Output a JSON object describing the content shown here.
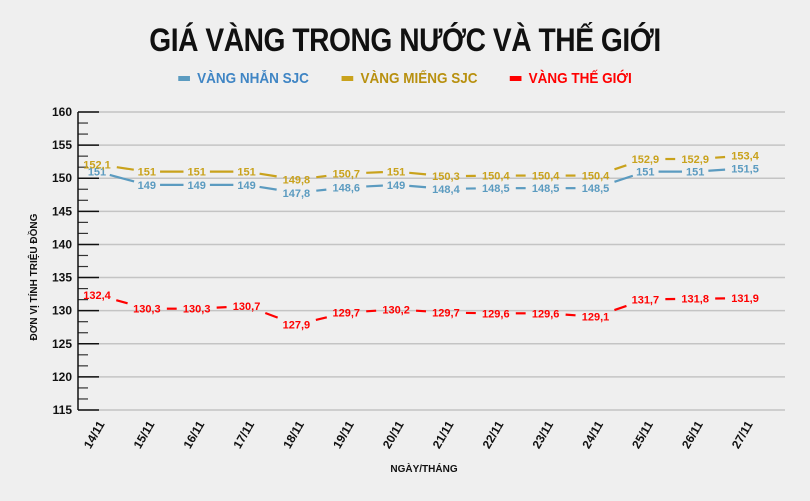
{
  "title": "GIÁ VÀNG TRONG NƯỚC VÀ THẾ GIỚI",
  "legend": [
    {
      "label": "VÀNG NHẪN SJC",
      "color": "#5b9bc0",
      "text_color": "#3f85c4"
    },
    {
      "label": "VÀNG MIẾNG SJC",
      "color": "#c9a21c",
      "text_color": "#b8900f"
    },
    {
      "label": "VÀNG THẾ GIỚI",
      "color": "#ff0000",
      "text_color": "#ff0000"
    }
  ],
  "chart_data": {
    "type": "line",
    "title": "GIÁ VÀNG TRONG NƯỚC VÀ THẾ GIỚI",
    "xlabel": "NGÀY/THÁNG",
    "ylabel": "ĐƠN VỊ TÍNH TRIỆU ĐỒNG",
    "ylim": [
      115,
      160
    ],
    "yticks": [
      115,
      120,
      125,
      130,
      135,
      140,
      145,
      150,
      155,
      160
    ],
    "grid": true,
    "legend_position": "top",
    "categories": [
      "14/11",
      "15/11",
      "16/11",
      "17/11",
      "18/11",
      "19/11",
      "20/11",
      "21/11",
      "22/11",
      "23/11",
      "24/11",
      "25/11",
      "26/11",
      "27/11"
    ],
    "series": [
      {
        "name": "VÀNG NHẪN SJC",
        "color": "#5b9bc0",
        "values": [
          151,
          149,
          149,
          149,
          147.8,
          148.6,
          149,
          148.4,
          148.5,
          148.5,
          148.5,
          151,
          151,
          151.5
        ],
        "labels": [
          "151",
          "149",
          "149",
          "149",
          "147,8",
          "148,6",
          "149",
          "148,4",
          "148,5",
          "148,5",
          "148,5",
          "151",
          "151",
          "151,5"
        ]
      },
      {
        "name": "VÀNG MIẾNG SJC",
        "color": "#c9a21c",
        "values": [
          152.1,
          151,
          151,
          151,
          149.8,
          150.7,
          151,
          150.3,
          150.4,
          150.4,
          150.4,
          152.9,
          152.9,
          153.4
        ],
        "labels": [
          "152,1",
          "151",
          "151",
          "151",
          "149,8",
          "150,7",
          "151",
          "150,3",
          "150,4",
          "150,4",
          "150,4",
          "152,9",
          "152,9",
          "153,4"
        ]
      },
      {
        "name": "VÀNG THẾ GIỚI",
        "color": "#ff0000",
        "values": [
          132.4,
          130.3,
          130.3,
          130.7,
          127.9,
          129.7,
          130.2,
          129.7,
          129.6,
          129.6,
          129.1,
          131.7,
          131.8,
          131.9
        ],
        "labels": [
          "132,4",
          "130,3",
          "130,3",
          "130,7",
          "127,9",
          "129,7",
          "130,2",
          "129,7",
          "129,6",
          "129,6",
          "129,1",
          "131,7",
          "131,8",
          "131,9"
        ]
      }
    ]
  }
}
